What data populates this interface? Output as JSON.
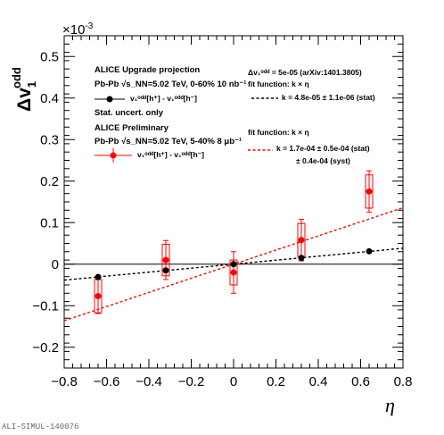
{
  "chart_data": {
    "type": "scatter",
    "xlabel": "η",
    "ylabel_main": "Δv",
    "ylabel_sub": "1",
    "ylabel_sup": "odd",
    "y_multiplier": "×10",
    "y_multiplier_exp": "-3",
    "xlim": [
      -0.8,
      0.8
    ],
    "ylim": [
      -0.25,
      0.55
    ],
    "x_ticks": [
      "−0.8",
      "−0.6",
      "−0.4",
      "−0.2",
      "0",
      "0.2",
      "0.4",
      "0.6",
      "0.8"
    ],
    "y_ticks": [
      "−0.2",
      "−0.1",
      "0",
      "0.1",
      "0.2",
      "0.3",
      "0.4",
      "0.5"
    ],
    "grid": false,
    "series": [
      {
        "name": "ALICE Upgrade projection",
        "color": "#000000",
        "x": [
          -0.64,
          -0.32,
          0.0,
          0.32,
          0.64
        ],
        "y": [
          -0.031,
          -0.015,
          0.0,
          0.015,
          0.031
        ],
        "fit": {
          "slope": 0.048
        }
      },
      {
        "name": "ALICE Preliminary",
        "color": "#ff0000",
        "x": [
          -0.64,
          -0.32,
          0.0,
          0.32,
          0.64
        ],
        "y": [
          -0.077,
          0.01,
          -0.02,
          0.058,
          0.175
        ],
        "stat_err": [
          0.042,
          0.047,
          0.05,
          0.05,
          0.05
        ],
        "syst_err": [
          0.04,
          0.038,
          0.03,
          0.04,
          0.04
        ],
        "fit": {
          "slope": 0.17
        }
      }
    ]
  },
  "legend": {
    "upgrade_title": "ALICE Upgrade projection",
    "upgrade_system": "Pb-Pb √s_NN=5.02 TeV, 0-60% 10 nb⁻¹",
    "upgrade_entry": "v₁ᵒᵈᵈ[h⁺] - v₁ᵒᵈᵈ[h⁻]",
    "stat_only": "Stat. uncert. only",
    "upgrade_input": "Δv₁ᵒᵈᵈ = 5e-05 (arXiv:1401.3805)",
    "upgrade_fit_fn": "fit function: k × η",
    "upgrade_fit_result": "k = 4.8e-05 ± 1.1e-06 (stat)",
    "prelim_title": "ALICE Preliminary",
    "prelim_system": "Pb-Pb √s_NN=5.02 TeV, 5-40% 8 μb⁻¹",
    "prelim_entry": "v₁ᵒᵈᵈ[h⁺] - v₁ᵒᵈᵈ[h⁻]",
    "prelim_fit_fn": "fit function: k × η",
    "prelim_fit_result": "k = 1.7e-04 ± 0.5e-04 (stat)",
    "prelim_fit_syst": "± 0.4e-04 (syst)"
  },
  "watermark": "ALI-SIMUL-140076"
}
